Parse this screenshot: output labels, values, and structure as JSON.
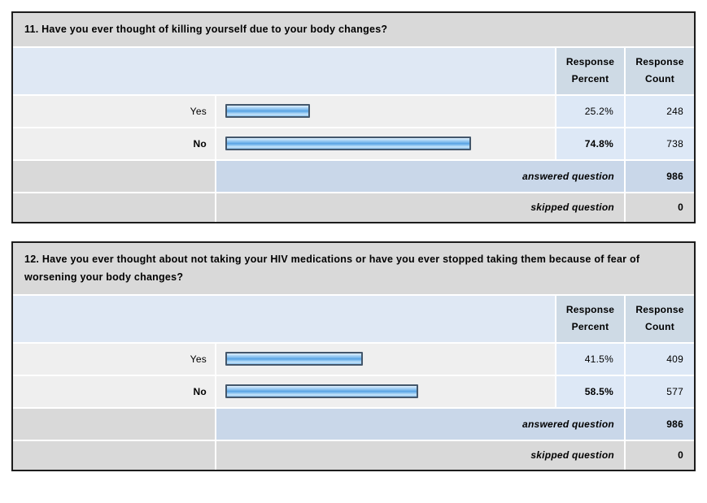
{
  "column_headers": {
    "percent": "Response Percent",
    "count": "Response Count"
  },
  "tables": [
    {
      "question": "11. Have you ever thought of killing yourself due to your body changes?",
      "rows": [
        {
          "label": "Yes",
          "percent": "25.2%",
          "percent_value": 25.2,
          "count": "248",
          "emphasized": false
        },
        {
          "label": "No",
          "percent": "74.8%",
          "percent_value": 74.8,
          "count": "738",
          "emphasized": true
        }
      ],
      "footer": [
        {
          "label": "answered question",
          "value": "986"
        },
        {
          "label": "skipped question",
          "value": "0"
        }
      ]
    },
    {
      "question": "12. Have you ever thought about not taking your HIV medications or have you ever stopped taking them because of fear of worsening your body changes?",
      "rows": [
        {
          "label": "Yes",
          "percent": "41.5%",
          "percent_value": 41.5,
          "count": "409",
          "emphasized": false
        },
        {
          "label": "No",
          "percent": "58.5%",
          "percent_value": 58.5,
          "count": "577",
          "emphasized": true
        }
      ],
      "footer": [
        {
          "label": "answered question",
          "value": "986"
        },
        {
          "label": "skipped question",
          "value": "0"
        }
      ]
    }
  ],
  "chart_data": [
    {
      "type": "bar",
      "orientation": "horizontal",
      "title": "11. Have you ever thought of killing yourself due to your body changes?",
      "categories": [
        "Yes",
        "No"
      ],
      "series": [
        {
          "name": "Response Percent",
          "values": [
            25.2,
            74.8
          ]
        },
        {
          "name": "Response Count",
          "values": [
            248,
            738
          ]
        }
      ],
      "answered_question": 986,
      "skipped_question": 0,
      "xlim": [
        0,
        100
      ],
      "grid": false,
      "legend_position": "none"
    },
    {
      "type": "bar",
      "orientation": "horizontal",
      "title": "12. Have you ever thought about not taking your HIV medications or have you ever stopped taking them because of fear of worsening your body changes?",
      "categories": [
        "Yes",
        "No"
      ],
      "series": [
        {
          "name": "Response Percent",
          "values": [
            41.5,
            58.5
          ]
        },
        {
          "name": "Response Count",
          "values": [
            409,
            577
          ]
        }
      ],
      "answered_question": 986,
      "skipped_question": 0,
      "xlim": [
        0,
        100
      ],
      "grid": false,
      "legend_position": "none"
    }
  ],
  "colors": {
    "question_header_bg": "#d9d9d9",
    "column_header_left_bg": "#dfe8f4",
    "column_header_cell_bg": "#cedae5",
    "answer_row_bg": "#efefef",
    "value_cell_bg": "#dde8f6",
    "answered_row_bg": "#c9d7e9",
    "skipped_row_bg": "#d9d9d9",
    "bar_fill": "#58a3e4",
    "bar_border": "#44576b",
    "table_border": "#1c1c1c"
  }
}
